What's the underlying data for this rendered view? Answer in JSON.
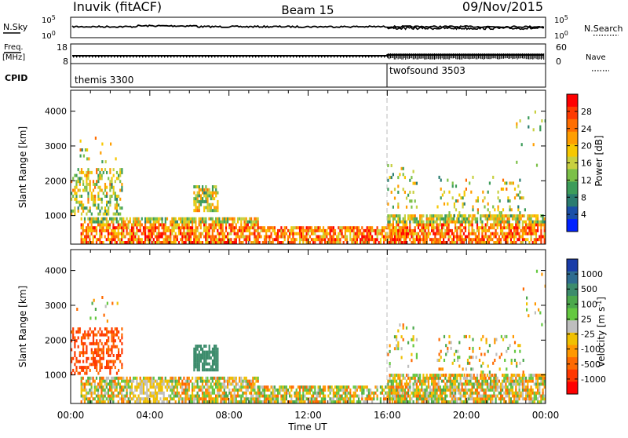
{
  "header": {
    "station": "Inuvik (fitACF)",
    "beam": "Beam 15",
    "date": "09/Nov/2015"
  },
  "top_panels": {
    "nsky_label": "N.Sky",
    "nsky_ticks": [
      "10^5",
      "10^0"
    ],
    "nsearch_label": "N.Search",
    "nsearch_ticks": [
      "10^5",
      "10^0"
    ],
    "freq_label": "Freq.",
    "freq_unit": "[MHz]",
    "freq_ticks": [
      "18",
      "8"
    ],
    "nave_label": "Nave",
    "nave_ticks": [
      "60",
      "0"
    ],
    "cpid_label": "CPID",
    "programs": [
      {
        "name": "themis 3300",
        "start_hour": 0
      },
      {
        "name": "twofsound 3503",
        "start_hour": 16
      }
    ]
  },
  "chart_data": [
    {
      "type": "heatmap",
      "name": "power",
      "ylabel": "Slant Range [km]",
      "ylim": [
        180,
        4600
      ],
      "yticks": [
        1000,
        2000,
        3000,
        4000
      ],
      "colorbar_label": "Power [dB]",
      "colorbar_ticks": [
        "28",
        "24",
        "20",
        "16",
        "12",
        "8",
        "4"
      ],
      "colorbar_colors": [
        "#ff0000",
        "#ff3a00",
        "#ff6e00",
        "#ff9e00",
        "#f7c800",
        "#c8d040",
        "#7cc048",
        "#3c9c5a",
        "#2a7c70",
        "#1a4fa8",
        "#0022ff"
      ]
    },
    {
      "type": "heatmap",
      "name": "velocity",
      "ylabel": "Slant Range [km]",
      "ylim": [
        180,
        4600
      ],
      "yticks": [
        1000,
        2000,
        3000,
        4000
      ],
      "colorbar_label": "Velocity [m s^-1]",
      "colorbar_ticks": [
        "1000",
        "500",
        "100",
        "25",
        "-25",
        "-100",
        "-500",
        "-1000"
      ],
      "colorbar_colors": [
        "#1a3ca8",
        "#2e6c90",
        "#3c8c6c",
        "#4ca84c",
        "#64c840",
        "#bebebe",
        "#f0c000",
        "#ff9800",
        "#ff6a00",
        "#ff3800",
        "#ff0000"
      ]
    }
  ],
  "x_axis": {
    "ticks": [
      "00:00",
      "04:00",
      "08:00",
      "12:00",
      "16:00",
      "20:00",
      "00:00"
    ],
    "label": "Time UT",
    "xlim_hours": [
      0,
      24
    ]
  }
}
